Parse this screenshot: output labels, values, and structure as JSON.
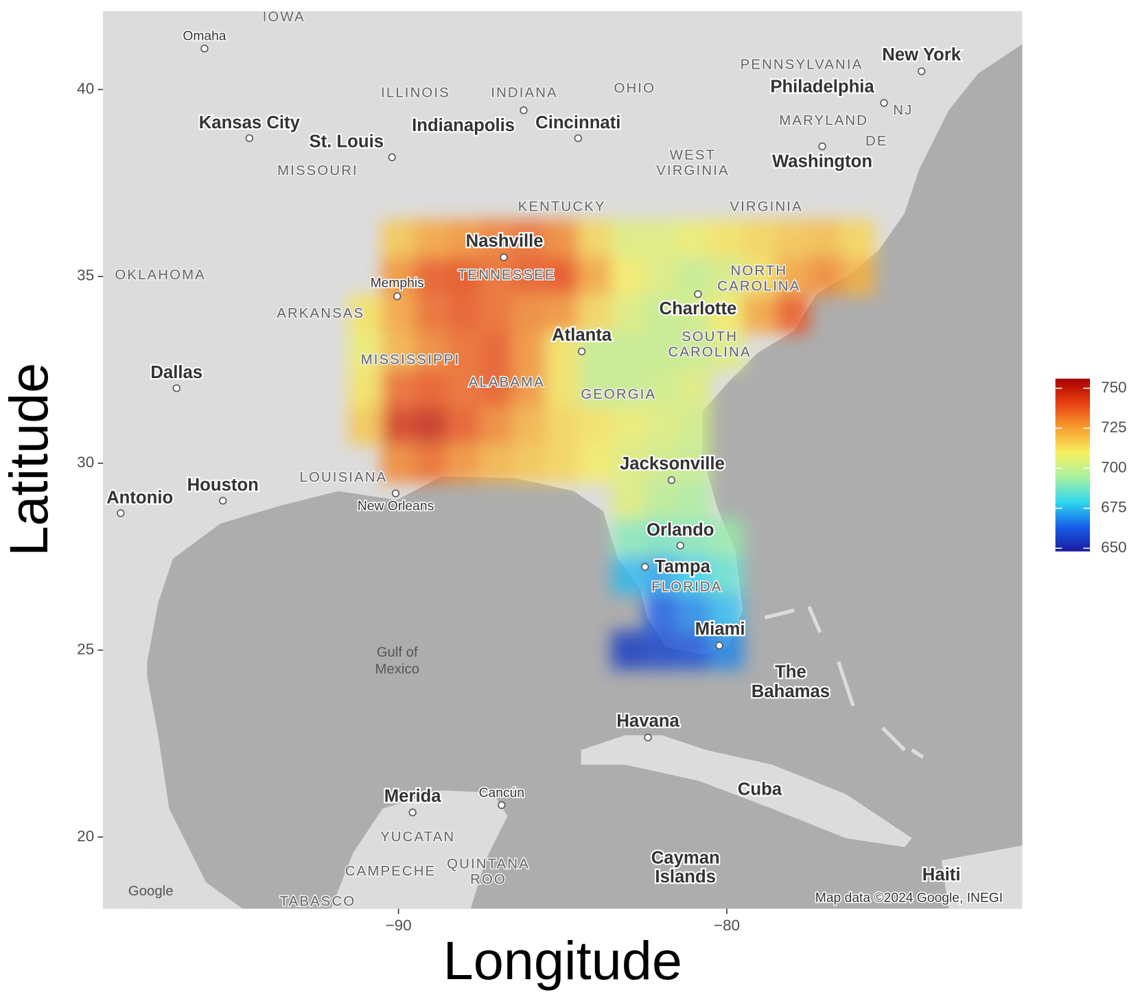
{
  "chart_data": {
    "type": "heatmap",
    "xlabel": "Longitude",
    "ylabel": "Latitude",
    "xlim": [
      -99,
      -71
    ],
    "ylim": [
      18.08,
      42.1
    ],
    "xticks": [
      {
        "value": -90,
        "label": "−90"
      },
      {
        "value": -80,
        "label": "−80"
      }
    ],
    "yticks": [
      20,
      25,
      30,
      35,
      40
    ],
    "x": [
      -91,
      -90,
      -89,
      -88,
      -87,
      -86,
      -85,
      -84,
      -83,
      -82,
      -81,
      -80,
      -79,
      -78,
      -77,
      -76
    ],
    "y": [
      36,
      35,
      34,
      33,
      32,
      31,
      30,
      29,
      28,
      27,
      26,
      25
    ],
    "z": [
      [
        null,
        718,
        725,
        728,
        732,
        735,
        730,
        715,
        705,
        705,
        708,
        712,
        715,
        718,
        720,
        715
      ],
      [
        null,
        728,
        738,
        740,
        735,
        738,
        740,
        725,
        710,
        705,
        700,
        703,
        712,
        725,
        730,
        722
      ],
      [
        712,
        725,
        735,
        738,
        735,
        730,
        728,
        715,
        705,
        700,
        702,
        710,
        725,
        738,
        null,
        null
      ],
      [
        708,
        722,
        730,
        735,
        738,
        728,
        712,
        700,
        700,
        700,
        700,
        705,
        null,
        null,
        null,
        null
      ],
      [
        712,
        735,
        738,
        735,
        738,
        728,
        712,
        700,
        700,
        702,
        705,
        null,
        null,
        null,
        null,
        null
      ],
      [
        718,
        745,
        748,
        738,
        730,
        722,
        715,
        712,
        708,
        705,
        702,
        null,
        null,
        null,
        null,
        null
      ],
      [
        null,
        730,
        735,
        728,
        722,
        718,
        715,
        710,
        705,
        702,
        700,
        null,
        null,
        null,
        null,
        null
      ],
      [
        null,
        null,
        null,
        null,
        null,
        null,
        null,
        null,
        705,
        698,
        695,
        null,
        null,
        null,
        null,
        null
      ],
      [
        null,
        null,
        null,
        null,
        null,
        null,
        null,
        null,
        690,
        688,
        690,
        692,
        null,
        null,
        null,
        null
      ],
      [
        null,
        null,
        null,
        null,
        null,
        null,
        null,
        null,
        675,
        672,
        678,
        685,
        null,
        null,
        null,
        null
      ],
      [
        null,
        null,
        null,
        null,
        null,
        null,
        null,
        null,
        null,
        662,
        668,
        675,
        null,
        null,
        null,
        null
      ],
      [
        null,
        null,
        null,
        null,
        null,
        null,
        null,
        null,
        655,
        658,
        660,
        668,
        null,
        null,
        null,
        null
      ]
    ],
    "colorscale": [
      "#1a1aa0",
      "#1560e8",
      "#30d8f0",
      "#a8f0a0",
      "#f8f060",
      "#f8a030",
      "#e84010",
      "#a80000"
    ],
    "colorbar_lim": [
      648,
      756
    ],
    "colorbar_ticks": [
      650,
      675,
      700,
      725,
      750
    ],
    "map_labels": [
      "IOWA",
      "Omaha",
      "Kansas City",
      "St. Louis",
      "ILLINOIS",
      "INDIANA",
      "OHIO",
      "Indianapolis",
      "Cincinnati",
      "PENNSYLVANIA",
      "New York",
      "Philadelphia",
      "MARYLAND",
      "NJ",
      "DE",
      "WEST",
      "VIRGINIA",
      "Washington",
      "MISSOURI",
      "KENTUCKY",
      "VIRGINIA",
      "Nashville",
      "TENNESSEE",
      "Memphis",
      "ARKANSAS",
      "OKLAHOMA",
      "NORTH",
      "CAROLINA",
      "Charlotte",
      "Atlanta",
      "SOUTH",
      "CAROLINA",
      "MISSISSIPPI",
      "ALABAMA",
      "GEORGIA",
      "Dallas",
      "Jacksonville",
      "LOUISIANA",
      "Houston",
      "New Orleans",
      "Orlando",
      "Tampa",
      "FLORIDA",
      "Miami",
      "Gulf of",
      "Mexico",
      "The",
      "Bahamas",
      "Havana",
      "Merida",
      "Cancún",
      "YUCATAN",
      "Cuba",
      "Cayman",
      "Islands",
      "CAMPECHE",
      "QUINTANA",
      "ROO",
      "Haiti",
      "TABASCO",
      "Antonio",
      "Map data ©2024 Google, INEGI",
      "Google"
    ]
  }
}
